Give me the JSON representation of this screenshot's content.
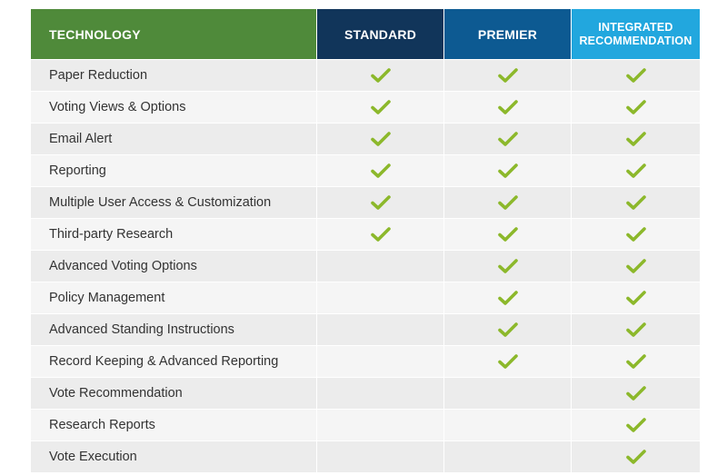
{
  "header": {
    "feature": "TECHNOLOGY",
    "standard": "STANDARD",
    "premier": "PREMIER",
    "integrated": "INTEGRATED RECOMMENDATION"
  },
  "colors": {
    "technology_header": "#4f8a3a",
    "standard_header": "#11355a",
    "premier_header": "#0d5a92",
    "integrated_header": "#22a7de",
    "check": "#8cb82b"
  },
  "rows": [
    {
      "feature": "Paper Reduction",
      "standard": true,
      "premier": true,
      "integrated": true
    },
    {
      "feature": "Voting Views & Options",
      "standard": true,
      "premier": true,
      "integrated": true
    },
    {
      "feature": "Email Alert",
      "standard": true,
      "premier": true,
      "integrated": true
    },
    {
      "feature": "Reporting",
      "standard": true,
      "premier": true,
      "integrated": true
    },
    {
      "feature": "Multiple User Access & Customization",
      "standard": true,
      "premier": true,
      "integrated": true
    },
    {
      "feature": "Third-party Research",
      "standard": true,
      "premier": true,
      "integrated": true
    },
    {
      "feature": "Advanced Voting Options",
      "standard": false,
      "premier": true,
      "integrated": true
    },
    {
      "feature": "Policy Management",
      "standard": false,
      "premier": true,
      "integrated": true
    },
    {
      "feature": "Advanced Standing Instructions",
      "standard": false,
      "premier": true,
      "integrated": true
    },
    {
      "feature": "Record Keeping & Advanced Reporting",
      "standard": false,
      "premier": true,
      "integrated": true
    },
    {
      "feature": "Vote Recommendation",
      "standard": false,
      "premier": false,
      "integrated": true
    },
    {
      "feature": "Research Reports",
      "standard": false,
      "premier": false,
      "integrated": true
    },
    {
      "feature": "Vote Execution",
      "standard": false,
      "premier": false,
      "integrated": true
    }
  ],
  "icons": {
    "check": "check-icon"
  }
}
